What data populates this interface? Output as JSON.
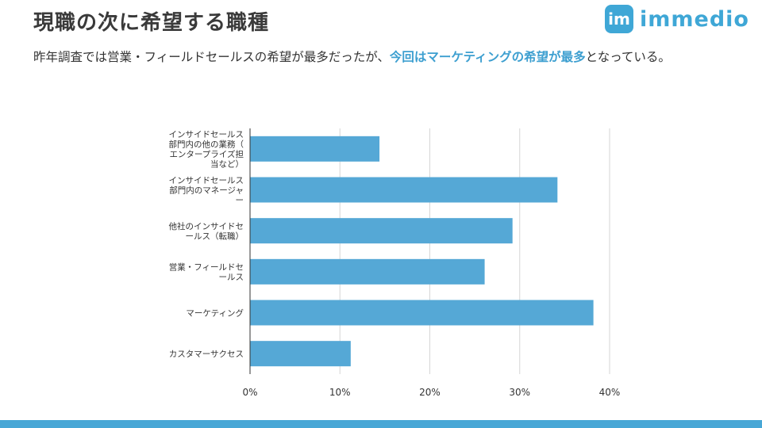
{
  "header": {
    "title": "現職の次に希望する職種",
    "logo_mark": "im",
    "logo_text": "immedio",
    "subtitle_plain": "昨年調査では営業・フィールドセールスの希望が最多だったが、",
    "subtitle_highlight": "今回はマーケティングの希望が最多",
    "subtitle_tail": "となっている。"
  },
  "colors": {
    "bar": "#55a8d6",
    "grid": "#d6d6d6",
    "axis": "#333333",
    "highlight": "#3d9fd0",
    "footer": "#48a7d6"
  },
  "chart_data": {
    "type": "bar",
    "orientation": "horizontal",
    "categories": [
      [
        "インサイドセールス",
        "部門内の他の業務（",
        "エンタープライズ担",
        "当など）"
      ],
      [
        "インサイドセールス",
        "部門内のマネージャ",
        "ー"
      ],
      [
        "他社のインサイドセ",
        "ールス（転職）"
      ],
      [
        "営業・フィールドセ",
        "ールス"
      ],
      [
        "マーケティング"
      ],
      [
        "カスタマーサクセス"
      ]
    ],
    "values": [
      14.4,
      34.2,
      29.2,
      26.1,
      38.2,
      11.2
    ],
    "xlim": [
      0,
      40
    ],
    "xticks": [
      "0%",
      "10%",
      "20%",
      "30%",
      "40%"
    ],
    "xlabel": "",
    "ylabel": "",
    "grid": true,
    "title": ""
  }
}
